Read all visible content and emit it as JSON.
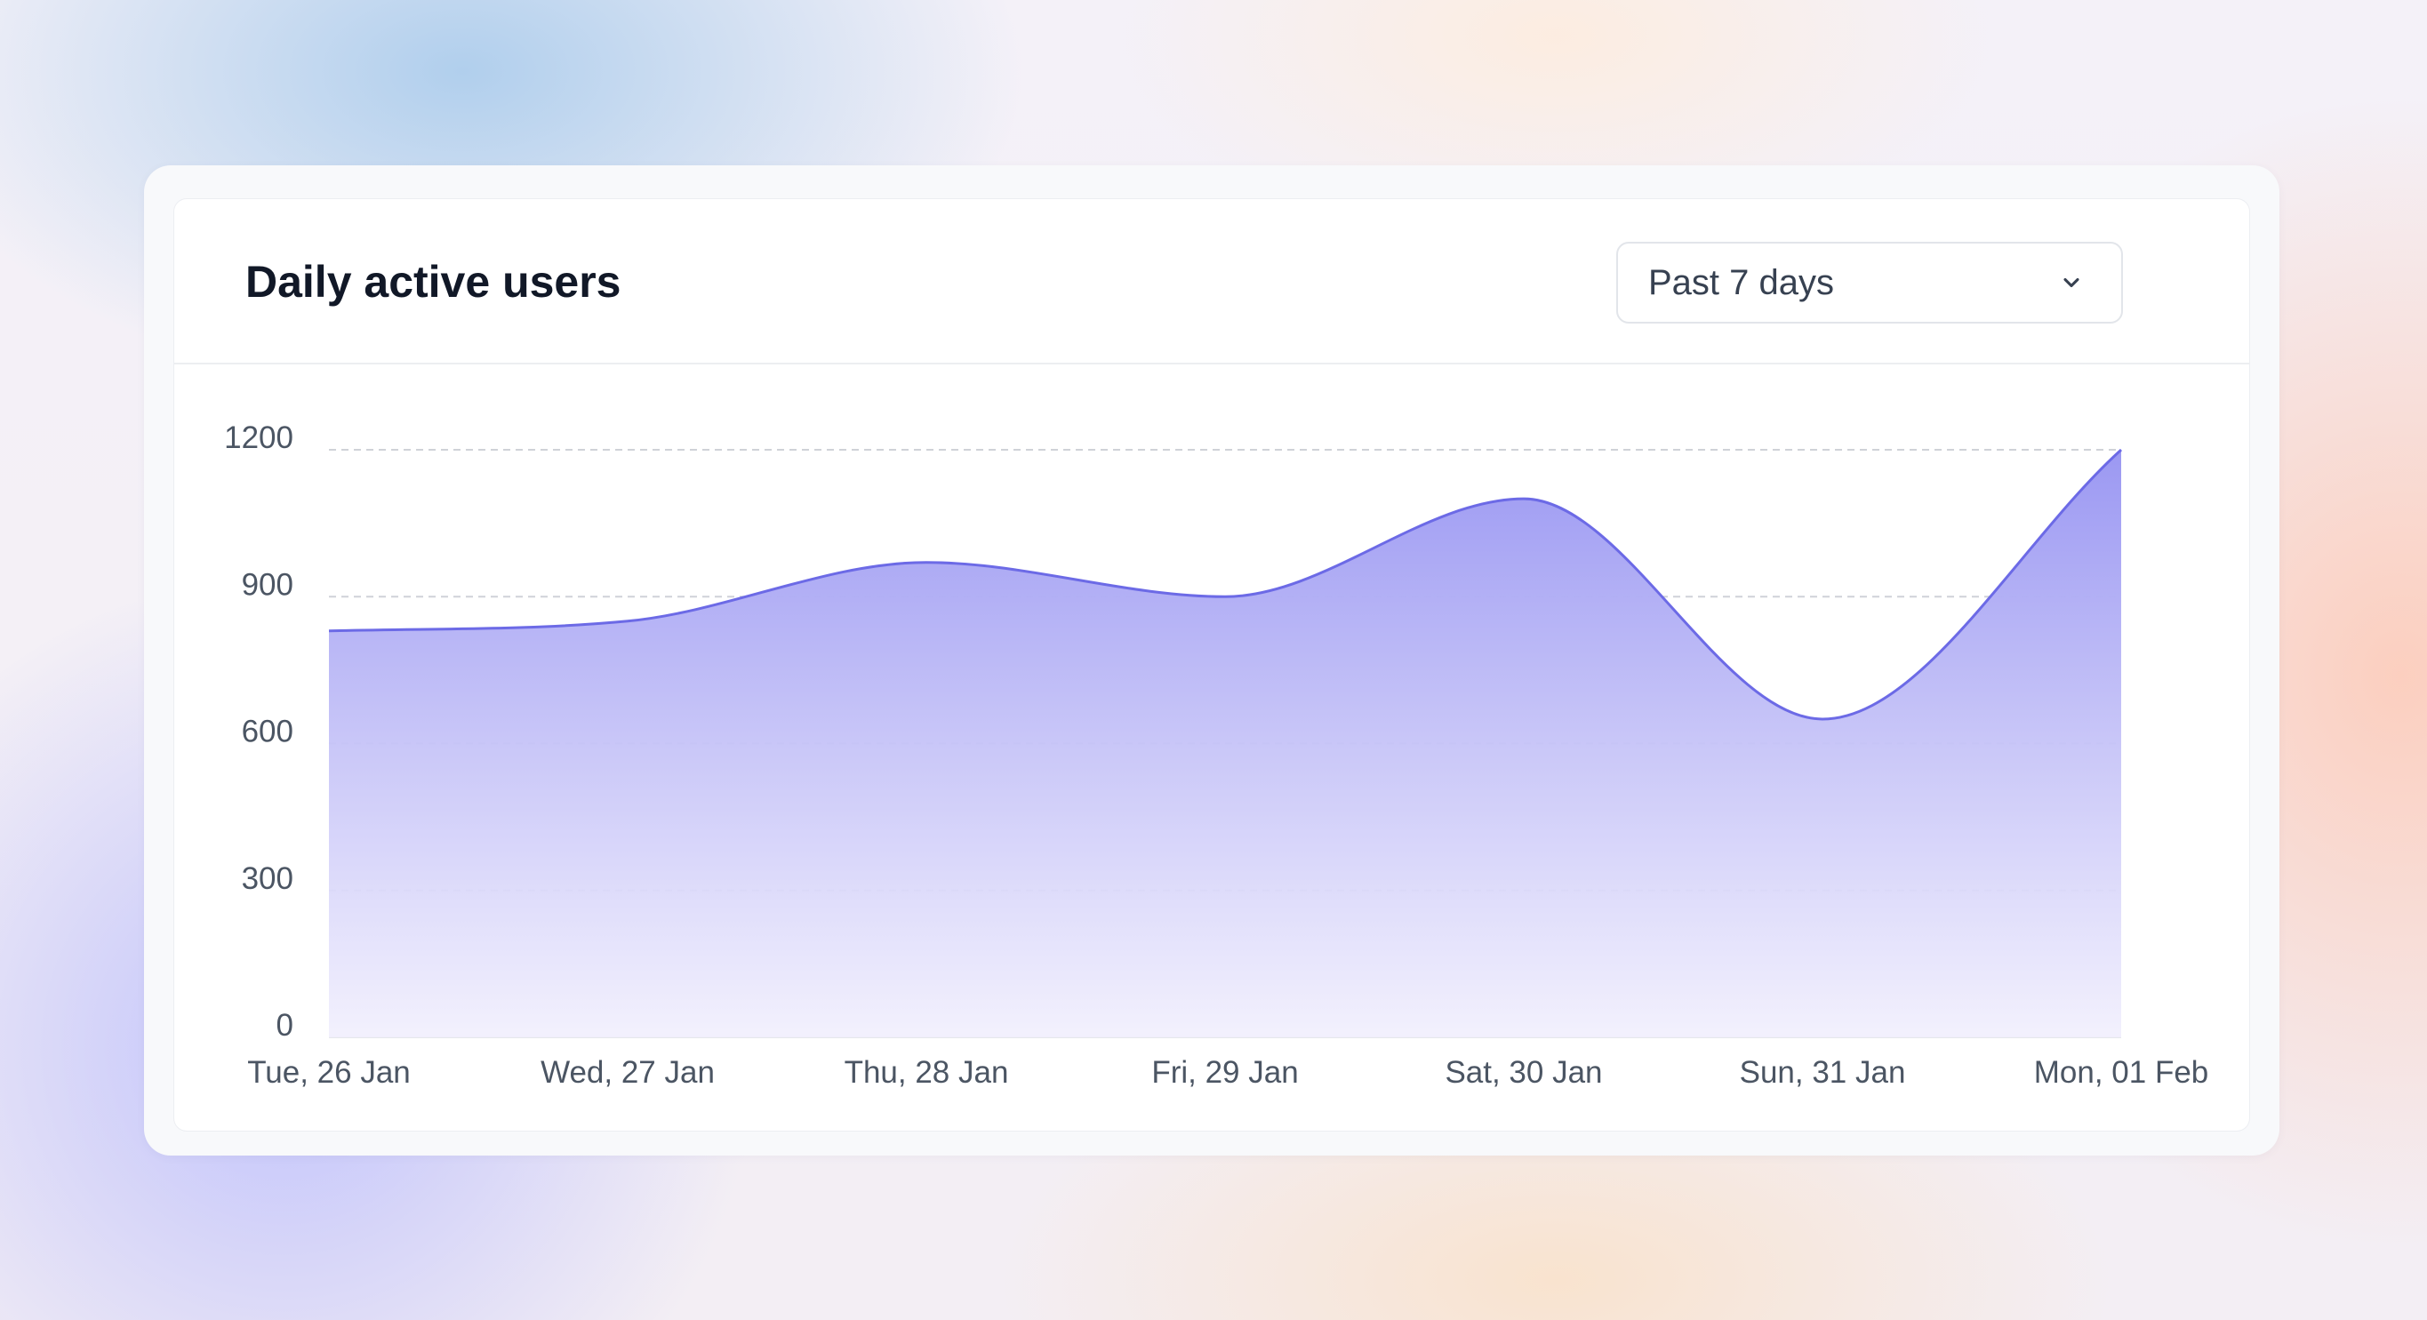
{
  "card": {
    "title": "Daily active users",
    "range_select": {
      "value": "Past 7 days",
      "icon": "chevron-down-icon"
    }
  },
  "chart_data": {
    "type": "area",
    "title": "Daily active users",
    "xlabel": "",
    "ylabel": "",
    "categories": [
      "Tue, 26 Jan",
      "Wed, 27 Jan",
      "Thu, 28 Jan",
      "Fri, 29 Jan",
      "Sat, 30 Jan",
      "Sun, 31 Jan",
      "Mon, 01 Feb"
    ],
    "series": [
      {
        "values": [
          830,
          850,
          970,
          900,
          1100,
          650,
          1200
        ]
      }
    ],
    "ylim": [
      0,
      1200
    ],
    "yticks": [
      0,
      300,
      600,
      900,
      1200
    ],
    "grid": "horizontal dashed",
    "legend": "none",
    "colors": {
      "line": "#6c6ae6",
      "fill_top": "#9b98f2",
      "fill_bottom": "#f1effd",
      "grid": "#cfd2d8",
      "axis_text": "#4b5563"
    }
  }
}
